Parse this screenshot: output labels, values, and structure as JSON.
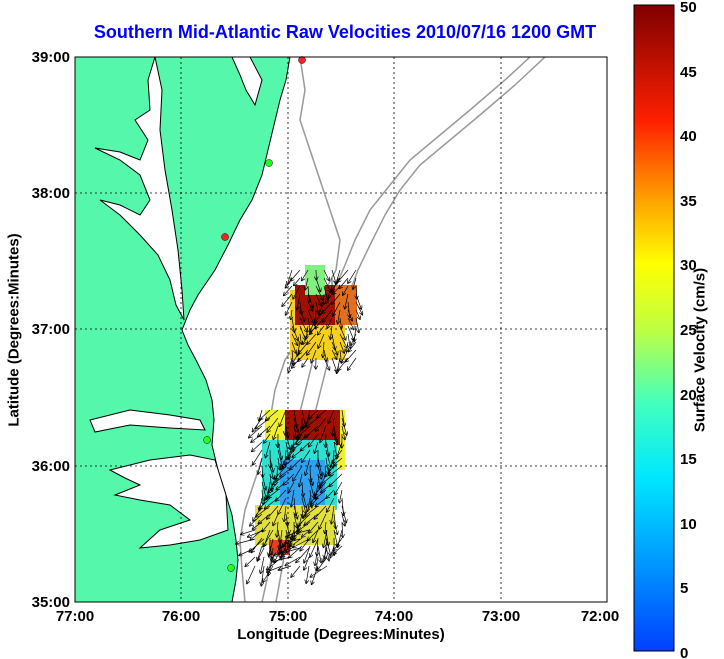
{
  "title": "Southern Mid-Atlantic Raw Velocities 2010/07/16 1200 GMT",
  "x_axis": {
    "label": "Longitude (Degrees:Minutes)",
    "ticks": [
      "77:00",
      "76:00",
      "75:00",
      "74:00",
      "73:00",
      "72:00"
    ],
    "range": [
      -77,
      -72
    ]
  },
  "y_axis": {
    "label": "Latitude (Degrees:Minutes)",
    "ticks": [
      "39:00",
      "38:00",
      "37:00",
      "36:00",
      "35:00"
    ],
    "range": [
      35,
      39
    ]
  },
  "colorbar": {
    "label": "Surface Velocity (cm/s)",
    "ticks": [
      "50",
      "45",
      "40",
      "35",
      "30",
      "25",
      "20",
      "15",
      "10",
      "5",
      "0"
    ],
    "range": [
      0,
      50
    ]
  },
  "colors": {
    "land": "#55f7aa",
    "coast": "#000000",
    "bathymetry": "#999999",
    "title": "#0000ff"
  }
}
